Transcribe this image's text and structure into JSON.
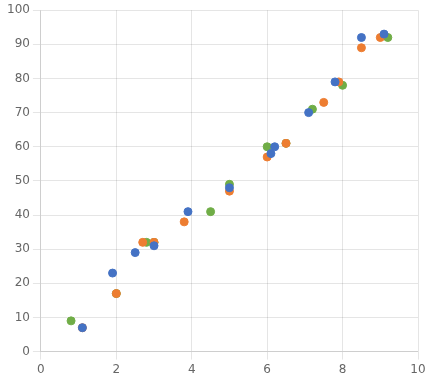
{
  "chart_data": {
    "type": "scatter",
    "series": [
      {
        "color": "#4472c4",
        "x": [
          1.1,
          1.9,
          2.5,
          3.0,
          3.9,
          5.0,
          6.1,
          6.2,
          7.1,
          7.8,
          8.5,
          9.1
        ],
        "values": [
          7,
          23,
          29,
          31,
          41,
          48,
          58,
          60,
          70,
          79,
          92,
          93
        ]
      },
      {
        "color": "#ed7d31",
        "x": [
          1.1,
          2.0,
          2.7,
          3.0,
          3.8,
          5.0,
          6.0,
          6.5,
          7.5,
          7.9,
          8.5,
          9.0
        ],
        "values": [
          7,
          17,
          32,
          32,
          38,
          47,
          57,
          61,
          73,
          79,
          89,
          92
        ]
      },
      {
        "color": "#70ad47",
        "x": [
          0.8,
          2.0,
          2.8,
          3.0,
          4.5,
          5.0,
          6.0,
          6.5,
          7.2,
          8.0,
          9.2
        ],
        "values": [
          9,
          17,
          32,
          32,
          41,
          49,
          60,
          61,
          71,
          78,
          92
        ]
      }
    ],
    "xlim": [
      0,
      10
    ],
    "ylim": [
      0,
      100
    ],
    "xticks": [
      0,
      2,
      4,
      6,
      8,
      10
    ],
    "yticks": [
      0,
      10,
      20,
      30,
      40,
      50,
      60,
      70,
      80,
      90,
      100
    ],
    "grid": true
  }
}
